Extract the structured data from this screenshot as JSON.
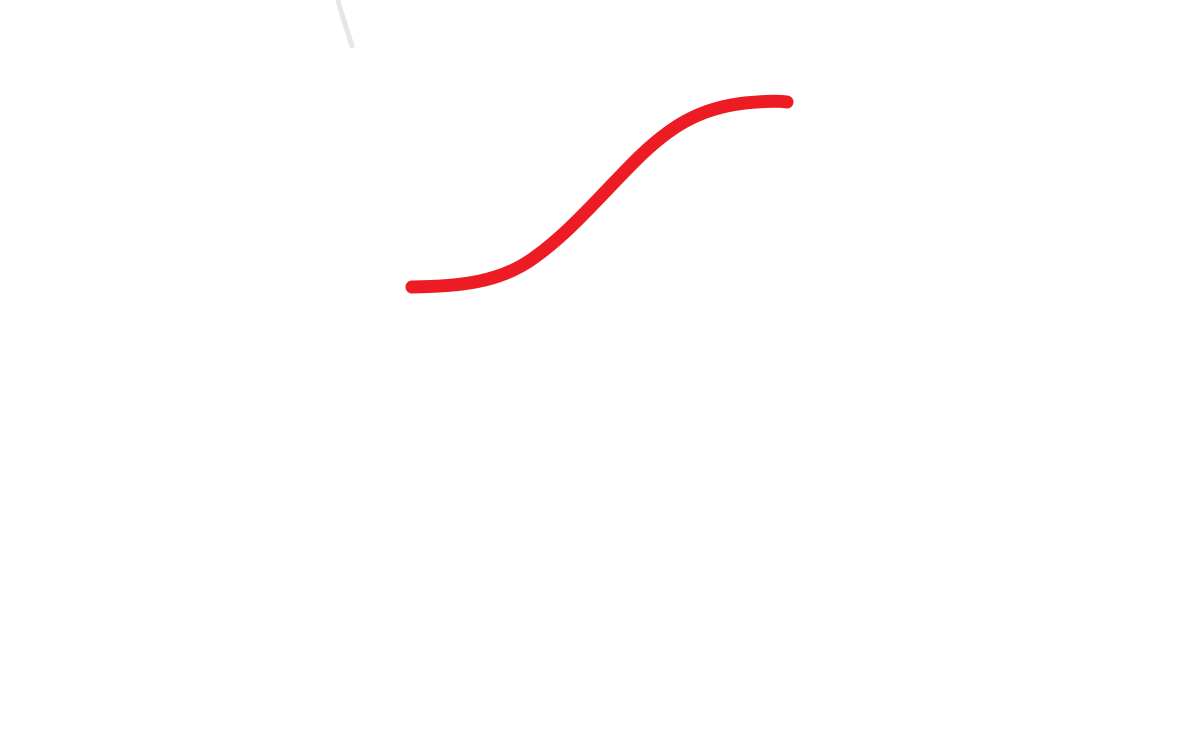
{
  "curve": {
    "shape": "s-curve",
    "stroke_color": "#ed1c24",
    "description_visible": false
  },
  "faint_mark": {
    "color": "#e6e6e6"
  },
  "background_color": "#ffffff"
}
